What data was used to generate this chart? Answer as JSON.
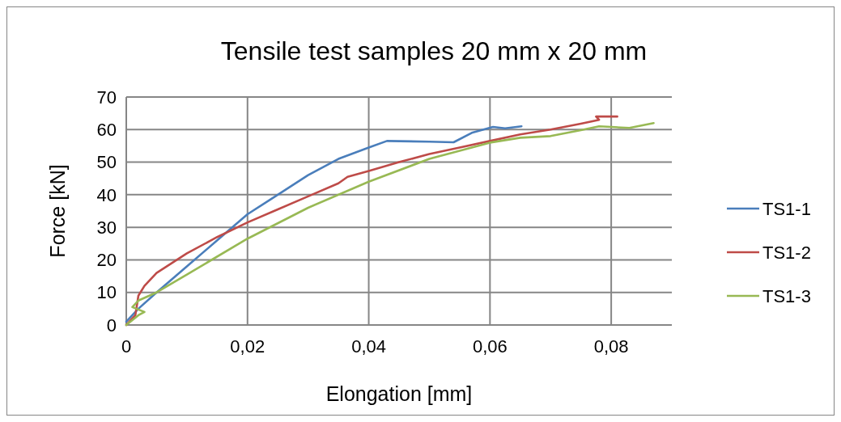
{
  "chart_data": {
    "type": "line",
    "title": "Tensile test samples 20 mm x 20 mm",
    "xlabel": "Elongation [mm]",
    "ylabel": "Force [kN]",
    "xlim": [
      0,
      0.09
    ],
    "xticks": [
      {
        "value": 0,
        "label": "0"
      },
      {
        "value": 0.02,
        "label": "0,02"
      },
      {
        "value": 0.04,
        "label": "0,04"
      },
      {
        "value": 0.06,
        "label": "0,06"
      },
      {
        "value": 0.08,
        "label": "0,08"
      }
    ],
    "ylim": [
      0,
      70
    ],
    "yticks": [
      0,
      10,
      20,
      30,
      40,
      50,
      60,
      70
    ],
    "grid": true,
    "legend": "right",
    "marker": "none",
    "line_style": "solid",
    "series": [
      {
        "name": "TS1-1",
        "color": "#4a7ebb",
        "x": [
          0,
          0.002,
          0.005,
          0.01,
          0.015,
          0.02,
          0.025,
          0.03,
          0.035,
          0.04,
          0.043,
          0.05,
          0.054,
          0.057,
          0.0605,
          0.0625,
          0.0652
        ],
        "values": [
          1,
          5,
          10,
          18,
          26,
          34,
          40,
          46,
          51,
          54.5,
          56.5,
          56.3,
          56.1,
          59,
          60.8,
          60.4,
          61
        ]
      },
      {
        "name": "TS1-2",
        "color": "#be4b48",
        "x": [
          0,
          0.0015,
          0.002,
          0.003,
          0.005,
          0.01,
          0.015,
          0.02,
          0.025,
          0.03,
          0.035,
          0.0365,
          0.04,
          0.045,
          0.05,
          0.055,
          0.06,
          0.065,
          0.07,
          0.075,
          0.078,
          0.0775,
          0.081
        ],
        "values": [
          0,
          3,
          9,
          12,
          16,
          22,
          27,
          31.5,
          35.5,
          39.5,
          43.5,
          45.5,
          47.3,
          50,
          52.5,
          54.5,
          56.5,
          58.5,
          60,
          61.8,
          63,
          64,
          64
        ]
      },
      {
        "name": "TS1-3",
        "color": "#98b954",
        "x": [
          0,
          0.002,
          0.003,
          0.001,
          0.002,
          0.005,
          0.01,
          0.02,
          0.03,
          0.04,
          0.05,
          0.06,
          0.065,
          0.07,
          0.075,
          0.078,
          0.08,
          0.083,
          0.087
        ],
        "values": [
          0,
          3,
          4,
          5.5,
          7.5,
          10,
          15.5,
          26.5,
          36,
          44,
          51,
          56,
          57.5,
          58,
          59.8,
          61,
          60.8,
          60.5,
          62
        ]
      }
    ]
  }
}
